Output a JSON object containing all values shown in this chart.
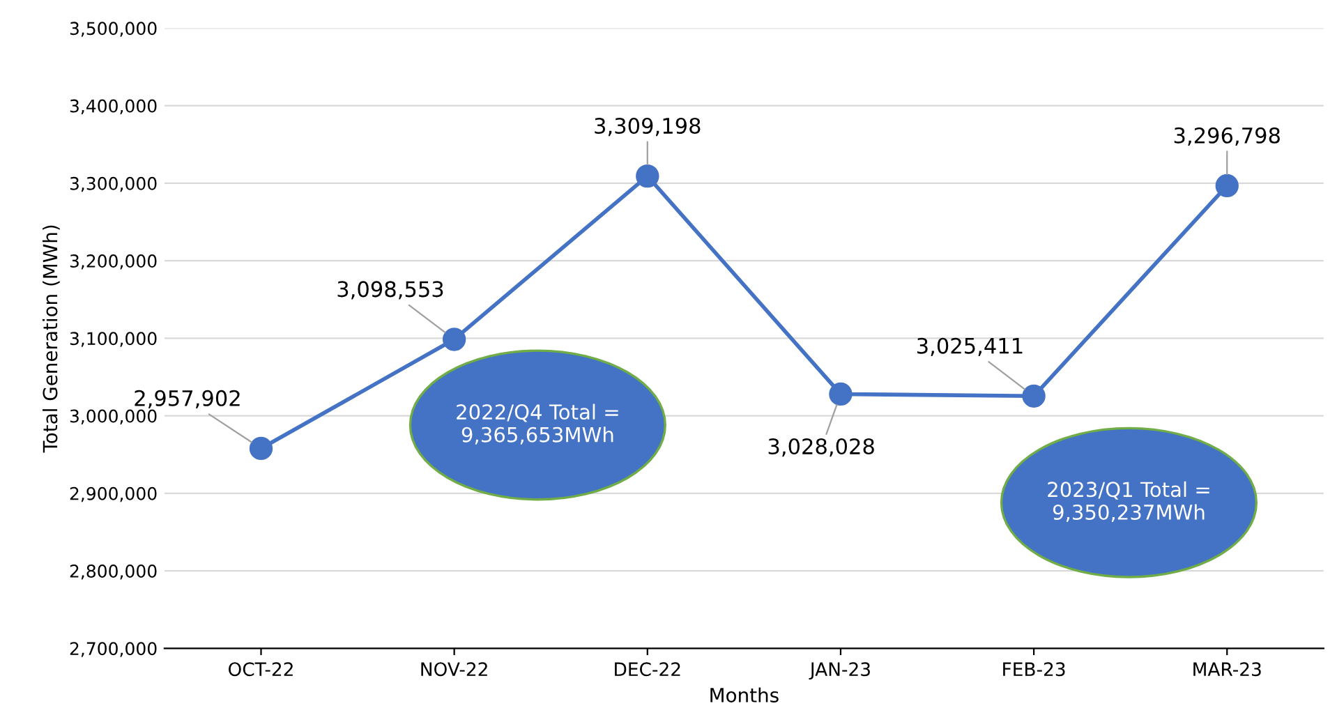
{
  "chart_data": {
    "type": "line",
    "xlabel": "Months",
    "ylabel": "Total Generation (MWh)",
    "categories": [
      "OCT-22",
      "NOV-22",
      "DEC-22",
      "JAN-23",
      "FEB-23",
      "MAR-23"
    ],
    "series": [
      {
        "color": "#4472c4",
        "values": [
          2957902,
          3098553,
          3309198,
          3028028,
          3025411,
          3296798
        ]
      }
    ],
    "value_labels": [
      "2,957,902",
      "3,098,553",
      "3,309,198",
      "3,028,028",
      "3,025,411",
      "3,296,798"
    ],
    "marker": "circle",
    "line_style": "solid",
    "grid": "y",
    "legend": false,
    "ylim": [
      2700000,
      3500000
    ],
    "yticks": [
      {
        "value": 2700000,
        "label": "2,700,000"
      },
      {
        "value": 2800000,
        "label": "2,800,000"
      },
      {
        "value": 2900000,
        "label": "2,900,000"
      },
      {
        "value": 3000000,
        "label": "3,000,000"
      },
      {
        "value": 3100000,
        "label": "3,100,000"
      },
      {
        "value": 3200000,
        "label": "3,200,000"
      },
      {
        "value": 3300000,
        "label": "3,300,000"
      },
      {
        "value": 3400000,
        "label": "3,400,000"
      },
      {
        "value": 3500000,
        "label": "3,500,000"
      }
    ],
    "annotations": [
      "2022/Q4 Total =\n9,365,653MWh",
      "2023/Q1 Total =\n9,350,237MWh"
    ]
  }
}
